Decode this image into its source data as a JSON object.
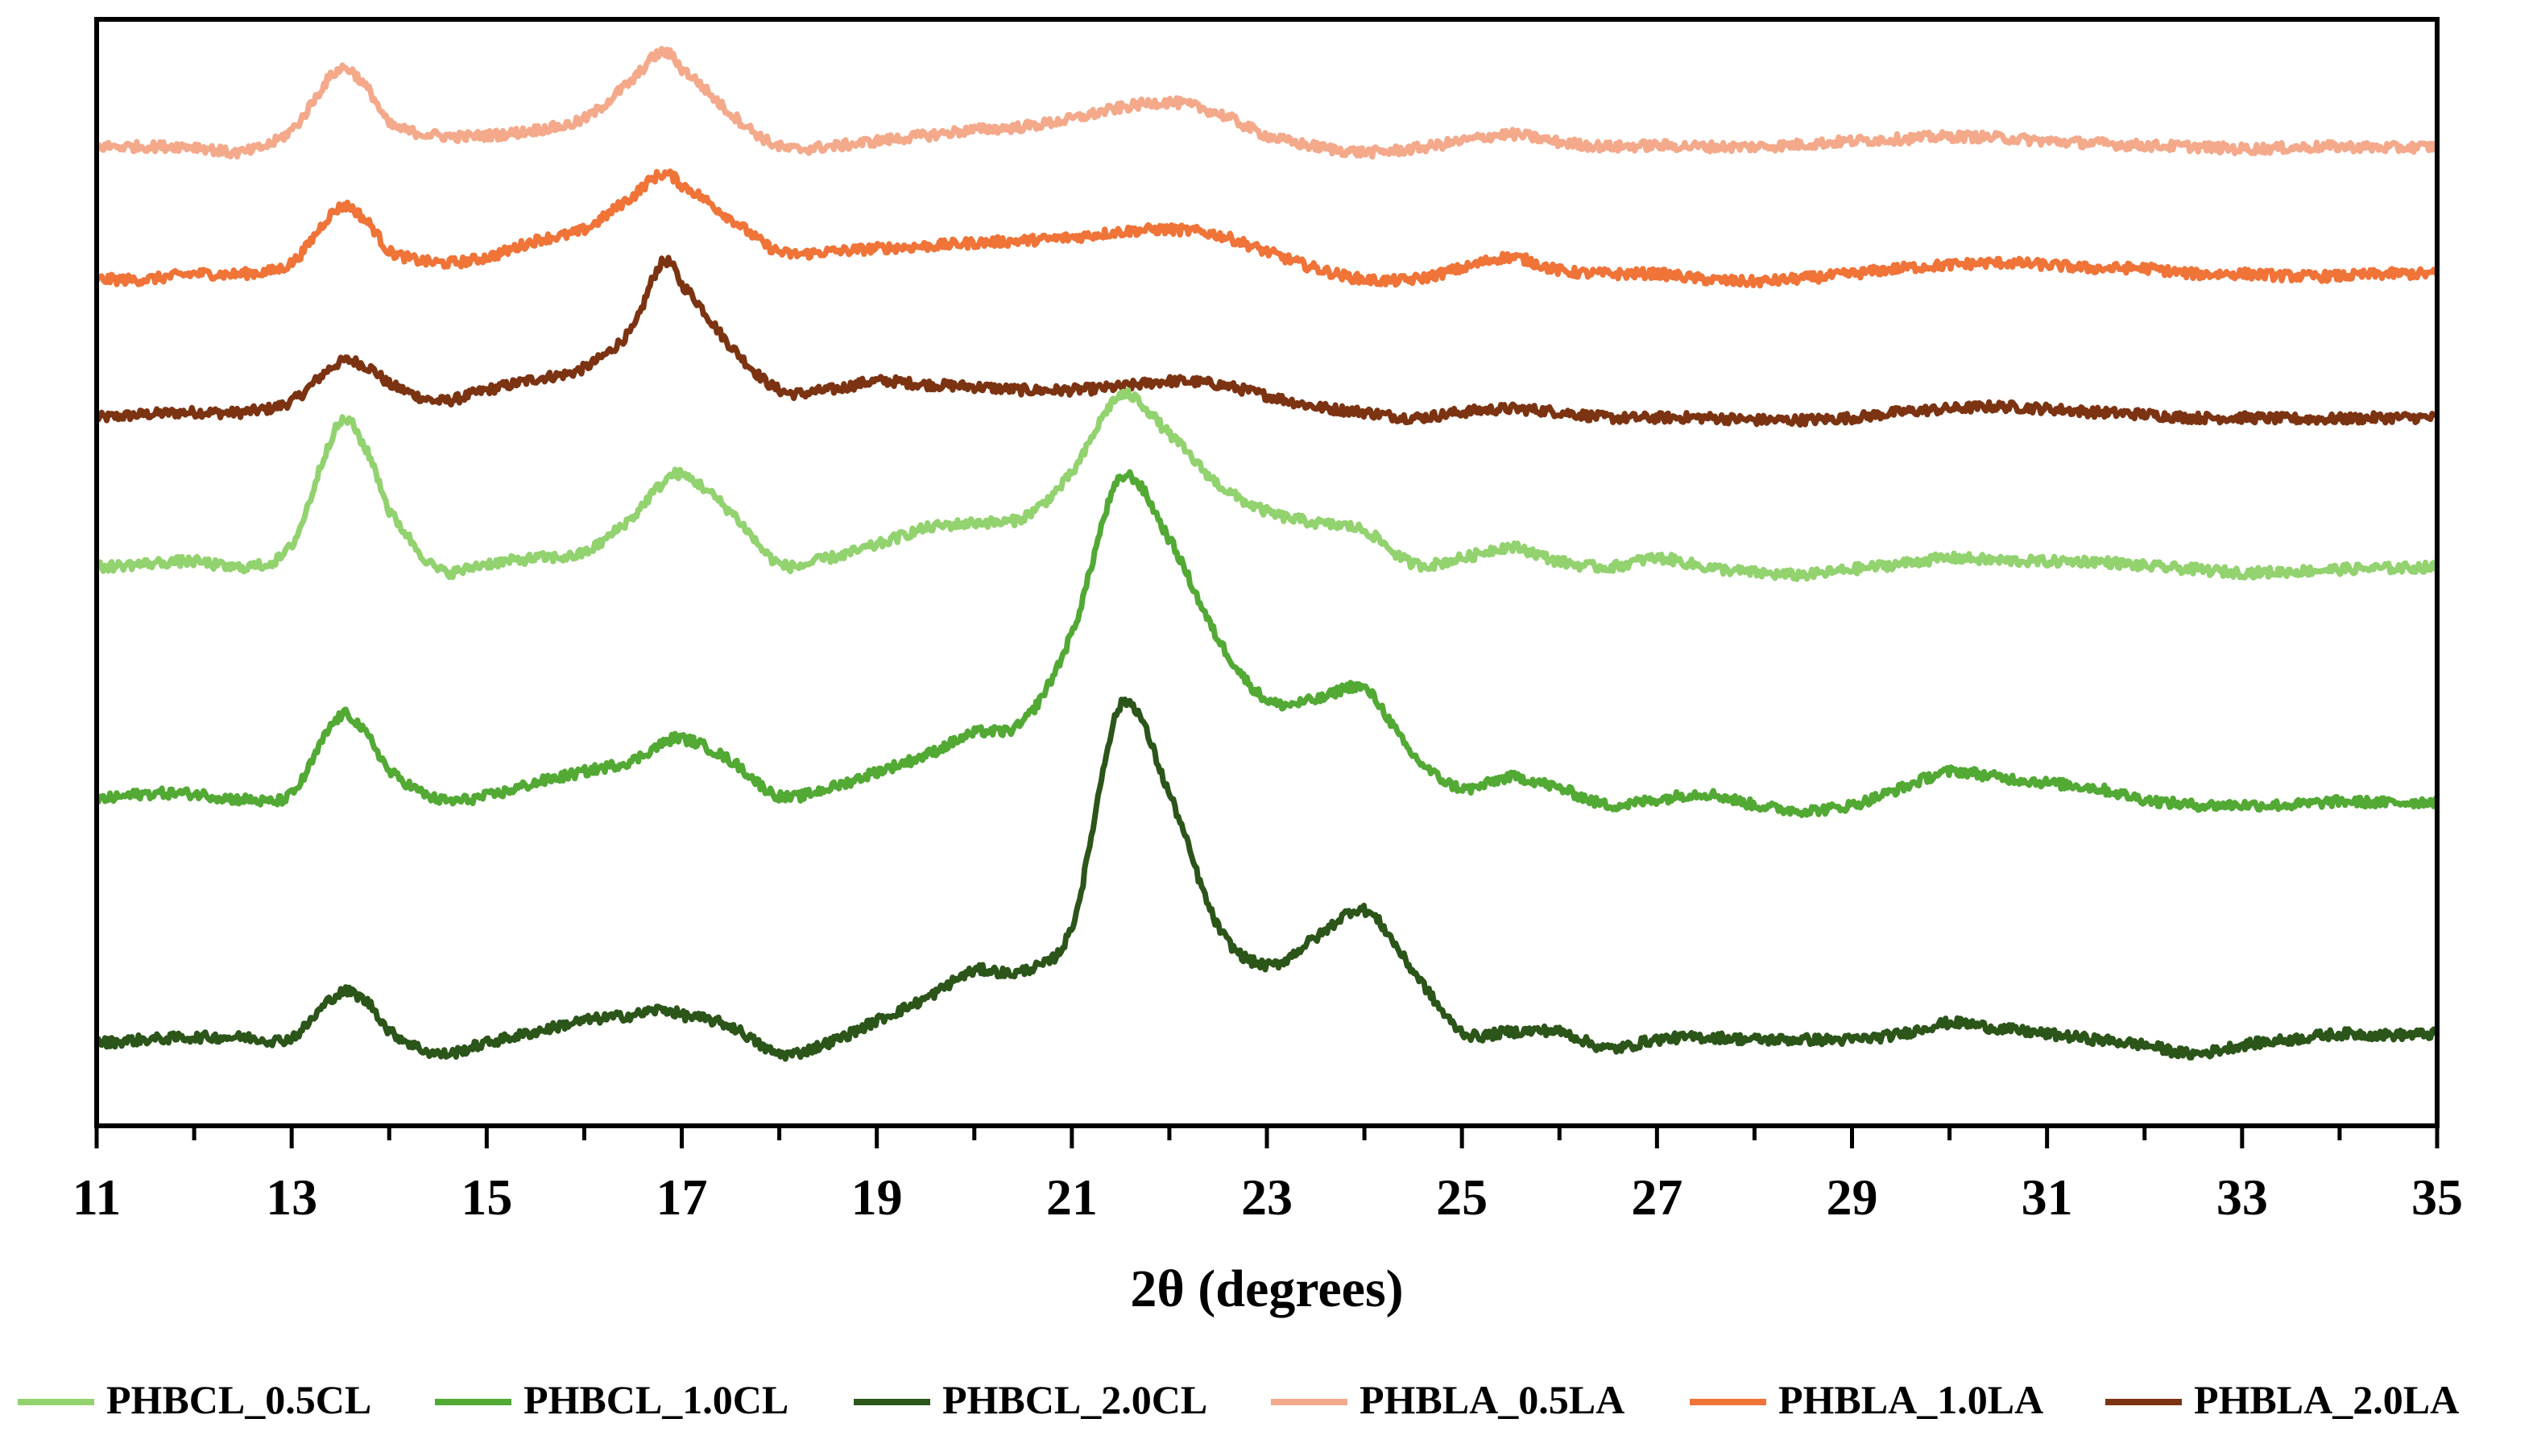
{
  "chart_data": {
    "type": "line",
    "title": "",
    "xlabel": "2θ (degrees)",
    "ylabel": "",
    "xlim": [
      11,
      35
    ],
    "ylim": [
      0,
      100
    ],
    "xticks": [
      "11",
      "13",
      "15",
      "17",
      "19",
      "21",
      "23",
      "25",
      "27",
      "29",
      "31",
      "33",
      "35"
    ],
    "y_axis_labels_shown": false,
    "legend_position": "bottom",
    "x": [
      11,
      11.5,
      12,
      12.5,
      13,
      13.5,
      13.8,
      14,
      14.5,
      15,
      15.5,
      16,
      16.5,
      16.8,
      17,
      17.5,
      18,
      18.5,
      19,
      19.5,
      20,
      20.5,
      21,
      21.5,
      22,
      22.5,
      23,
      23.5,
      24,
      24.5,
      25,
      25.5,
      26,
      26.5,
      27,
      27.5,
      28,
      28.5,
      29,
      29.5,
      30,
      30.5,
      31,
      31.5,
      32,
      32.5,
      33,
      33.5,
      34,
      34.5,
      35
    ],
    "series": [
      {
        "name": "PHBCL_0.5CL",
        "color": "#92d26f",
        "values": [
          50.5,
          50.8,
          51.0,
          50.5,
          52.5,
          63.5,
          60.5,
          55.5,
          50.3,
          50.8,
          51.3,
          51.8,
          55.0,
          58.0,
          58.8,
          55.5,
          50.8,
          51.3,
          52.5,
          54.0,
          54.5,
          55.0,
          59.0,
          66.0,
          62.5,
          58.0,
          55.5,
          54.5,
          53.8,
          50.8,
          51.3,
          52.3,
          51.0,
          50.5,
          51.3,
          50.5,
          50.0,
          49.8,
          50.3,
          50.8,
          51.3,
          51.1,
          51.0,
          51.0,
          50.6,
          50.3,
          50.0,
          50.1,
          50.3,
          50.4,
          50.5
        ]
      },
      {
        "name": "PHBCL_1.0CL",
        "color": "#52a934",
        "values": [
          29.5,
          30.0,
          30.0,
          29.5,
          30.0,
          37.0,
          35.0,
          32.0,
          29.5,
          29.8,
          31.0,
          32.0,
          33.0,
          34.5,
          35.0,
          33.0,
          29.8,
          30.5,
          32.0,
          33.5,
          35.5,
          36.5,
          44.5,
          58.5,
          53.0,
          44.0,
          38.5,
          38.5,
          39.5,
          33.5,
          30.5,
          31.5,
          30.5,
          29.0,
          29.5,
          30.0,
          29.0,
          28.5,
          29.0,
          30.5,
          32.0,
          31.5,
          31.0,
          30.5,
          29.5,
          29.0,
          29.0,
          29.0,
          29.3,
          29.2,
          29.3
        ]
      },
      {
        "name": "PHBCL_2.0CL",
        "color": "#2b5519",
        "values": [
          7.5,
          7.8,
          8.0,
          8.0,
          8.0,
          12.0,
          11.0,
          8.5,
          6.5,
          7.5,
          8.5,
          9.5,
          10.0,
          10.5,
          10.0,
          9.0,
          6.5,
          7.5,
          9.5,
          11.5,
          14.0,
          14.0,
          18.0,
          38.0,
          30.0,
          18.0,
          14.5,
          17.0,
          19.5,
          14.0,
          8.5,
          8.5,
          8.5,
          7.0,
          7.8,
          8.0,
          7.8,
          7.8,
          7.8,
          8.3,
          9.3,
          8.8,
          8.3,
          7.8,
          7.3,
          6.5,
          7.3,
          7.8,
          8.3,
          8.2,
          8.3
        ]
      },
      {
        "name": "PHBLA_0.5LA",
        "color": "#f4a98b",
        "values": [
          88.5,
          88.5,
          88.5,
          88.0,
          90.0,
          95.5,
          93.5,
          90.5,
          89.5,
          89.5,
          90.0,
          91.0,
          94.5,
          97.0,
          95.5,
          91.5,
          88.5,
          88.5,
          89.0,
          89.5,
          90.0,
          90.3,
          91.0,
          92.0,
          92.5,
          91.5,
          89.5,
          88.5,
          88.0,
          88.3,
          89.0,
          89.6,
          88.9,
          88.5,
          88.6,
          88.5,
          88.5,
          88.7,
          89.0,
          89.2,
          89.4,
          89.3,
          89.0,
          88.8,
          88.6,
          88.5,
          88.3,
          88.4,
          88.5,
          88.4,
          88.5
        ]
      },
      {
        "name": "PHBLA_1.0LA",
        "color": "#f07338",
        "values": [
          76.5,
          76.5,
          77.0,
          77.0,
          78.0,
          83.0,
          81.5,
          79.0,
          78.0,
          78.5,
          80.0,
          81.0,
          84.0,
          86.0,
          85.0,
          82.0,
          79.0,
          79.0,
          79.3,
          79.5,
          79.8,
          80.0,
          80.3,
          80.8,
          81.0,
          80.5,
          79.0,
          77.5,
          76.5,
          76.5,
          77.5,
          78.5,
          77.3,
          77.0,
          77.0,
          76.5,
          76.3,
          76.6,
          77.0,
          77.5,
          77.8,
          78.0,
          77.8,
          77.5,
          77.5,
          77.0,
          77.0,
          76.8,
          76.8,
          77.0,
          77.0
        ]
      },
      {
        "name": "PHBLA_2.0LA",
        "color": "#7c3312",
        "values": [
          64.0,
          64.3,
          64.5,
          64.5,
          65.5,
          69.0,
          68.5,
          67.0,
          65.5,
          66.5,
          67.5,
          68.5,
          72.0,
          78.0,
          76.0,
          70.5,
          66.5,
          66.5,
          67.3,
          67.0,
          66.8,
          66.5,
          66.5,
          66.8,
          67.3,
          67.0,
          66.0,
          65.0,
          64.5,
          64.0,
          64.5,
          64.8,
          64.5,
          64.0,
          64.0,
          64.0,
          63.8,
          63.8,
          64.0,
          64.5,
          64.8,
          65.0,
          64.8,
          64.5,
          64.3,
          64.0,
          64.0,
          63.9,
          63.9,
          64.0,
          64.0
        ]
      }
    ]
  },
  "legend_order": [
    0,
    1,
    2,
    3,
    4,
    5
  ],
  "plot_order": [
    5,
    4,
    3,
    2,
    1,
    0
  ]
}
